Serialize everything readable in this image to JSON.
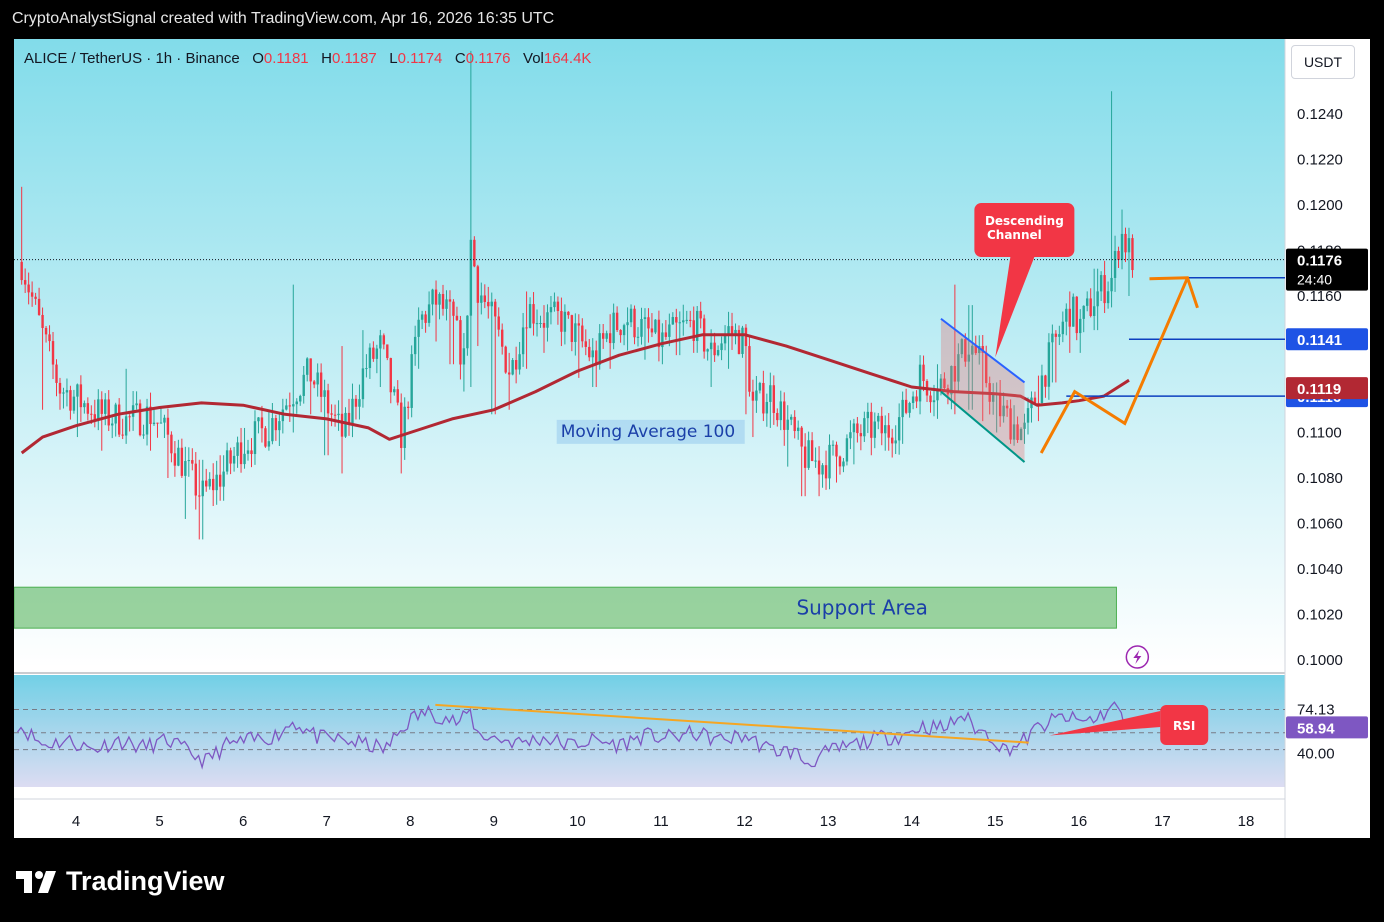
{
  "header": {
    "caption": "CryptoAnalystSignal created with TradingView.com, Apr 16, 2026 16:35 UTC"
  },
  "symbol_bar": {
    "symbol": "ALICE / TetherUS · 1h · Binance",
    "open_label": "O",
    "open": "0.1181",
    "high_label": "H",
    "high": "0.1187",
    "low_label": "L",
    "low": "0.1174",
    "close_label": "C",
    "close": "0.1176",
    "vol_label": "Vol",
    "vol": "164.4K"
  },
  "currency_button": "USDT",
  "brand": {
    "name": "TradingView",
    "icon": "tradingview-logo-icon"
  },
  "colors": {
    "up": "#26a69a",
    "down": "#f23645",
    "ma": "#b22833",
    "support": "#4caf50",
    "level_line": "#0d3fbf",
    "arrow": "#f57c00",
    "rsi_line": "#7e57c2",
    "rsi_trend": "#f5a623",
    "callout": "#f23645"
  },
  "chart_data": [
    {
      "type": "candlestick",
      "title": "ALICE / TetherUS · 1h · Binance",
      "x_ticks": [
        "4",
        "5",
        "6",
        "7",
        "8",
        "9",
        "10",
        "11",
        "12",
        "13",
        "14",
        "15",
        "16",
        "17",
        "18"
      ],
      "ylim": [
        0.0995,
        0.1265
      ],
      "y_ticks": [
        "0.1240",
        "0.1220",
        "0.1200",
        "0.1180",
        "0.1160",
        "0.1140",
        "0.1120",
        "0.1100",
        "0.1080",
        "0.1060",
        "0.1040",
        "0.1020",
        "0.1000"
      ],
      "price_path": {
        "x": [
          3.35,
          3.6,
          3.8,
          4.0,
          4.3,
          4.6,
          4.9,
          5.1,
          5.3,
          5.5,
          5.75,
          6.0,
          6.3,
          6.6,
          6.8,
          7.0,
          7.2,
          7.45,
          7.65,
          7.9,
          8.1,
          8.3,
          8.5,
          8.65,
          8.72,
          8.8,
          9.0,
          9.2,
          9.4,
          9.6,
          9.8,
          10.0,
          10.2,
          10.4,
          10.6,
          10.8,
          11.0,
          11.2,
          11.4,
          11.6,
          11.8,
          12.0,
          12.1,
          12.3,
          12.5,
          12.7,
          12.9,
          13.1,
          13.3,
          13.5,
          13.7,
          13.9,
          14.1,
          14.3,
          14.5,
          14.7,
          14.85,
          15.0,
          15.2,
          15.35,
          15.5,
          15.7,
          15.9,
          16.0,
          16.2,
          16.4,
          16.5,
          16.6,
          16.65
        ],
        "close": [
          0.1175,
          0.1143,
          0.112,
          0.1115,
          0.1108,
          0.1105,
          0.1108,
          0.1098,
          0.1085,
          0.1072,
          0.1082,
          0.1095,
          0.1102,
          0.1118,
          0.1126,
          0.1112,
          0.1098,
          0.1128,
          0.1138,
          0.1098,
          0.1148,
          0.1158,
          0.115,
          0.113,
          0.1185,
          0.1165,
          0.1148,
          0.1126,
          0.1155,
          0.115,
          0.115,
          0.1142,
          0.1132,
          0.1146,
          0.115,
          0.1145,
          0.114,
          0.1145,
          0.1148,
          0.1135,
          0.1145,
          0.114,
          0.1112,
          0.1118,
          0.1105,
          0.109,
          0.1086,
          0.109,
          0.1098,
          0.1102,
          0.11,
          0.1108,
          0.1125,
          0.1118,
          0.1128,
          0.114,
          0.1128,
          0.1112,
          0.1104,
          0.11,
          0.1118,
          0.1138,
          0.1155,
          0.1146,
          0.116,
          0.1168,
          0.1188,
          0.118,
          0.1176
        ],
        "high": [
          0.1208,
          0.115,
          0.1124,
          0.1118,
          0.1115,
          0.1128,
          0.1115,
          0.1102,
          0.109,
          0.1088,
          0.109,
          0.1102,
          0.111,
          0.1165,
          0.113,
          0.1118,
          0.1138,
          0.1145,
          0.1142,
          0.1105,
          0.1155,
          0.1162,
          0.1156,
          0.114,
          0.127,
          0.117,
          0.1155,
          0.1135,
          0.1162,
          0.1156,
          0.1156,
          0.1148,
          0.114,
          0.1152,
          0.1155,
          0.115,
          0.1148,
          0.1152,
          0.1154,
          0.1142,
          0.115,
          0.1146,
          0.112,
          0.1125,
          0.1112,
          0.1098,
          0.1094,
          0.1096,
          0.1106,
          0.1108,
          0.1106,
          0.1118,
          0.113,
          0.113,
          0.1165,
          0.1156,
          0.114,
          0.1122,
          0.1112,
          0.1108,
          0.1125,
          0.1145,
          0.1162,
          0.1152,
          0.1172,
          0.125,
          0.1198,
          0.119,
          0.1182
        ],
        "low": [
          0.1165,
          0.111,
          0.111,
          0.1098,
          0.1092,
          0.1095,
          0.1092,
          0.108,
          0.1062,
          0.1053,
          0.107,
          0.1085,
          0.1092,
          0.11,
          0.1108,
          0.109,
          0.1082,
          0.1112,
          0.112,
          0.1082,
          0.1128,
          0.114,
          0.113,
          0.1118,
          0.112,
          0.1138,
          0.1108,
          0.111,
          0.1128,
          0.1135,
          0.1138,
          0.1124,
          0.112,
          0.1128,
          0.1136,
          0.1132,
          0.113,
          0.1134,
          0.1135,
          0.112,
          0.1128,
          0.1108,
          0.1098,
          0.1102,
          0.1085,
          0.1072,
          0.1072,
          0.1078,
          0.1086,
          0.109,
          0.1092,
          0.1095,
          0.1108,
          0.1106,
          0.1108,
          0.111,
          0.1105,
          0.11,
          0.1095,
          0.1095,
          0.1105,
          0.1122,
          0.1135,
          0.1135,
          0.1145,
          0.1155,
          0.1172,
          0.116,
          0.1168
        ]
      },
      "moving_average": {
        "name": "Moving Average 100",
        "x": [
          3.35,
          3.6,
          4.0,
          4.5,
          5.0,
          5.5,
          6.0,
          6.5,
          7.0,
          7.5,
          7.75,
          8.0,
          8.5,
          9.0,
          9.5,
          10.0,
          10.5,
          11.0,
          11.5,
          12.0,
          12.5,
          13.0,
          13.5,
          14.0,
          14.5,
          15.0,
          15.3,
          15.5,
          15.8,
          16.0,
          16.3,
          16.6
        ],
        "y": [
          0.1091,
          0.1098,
          0.1103,
          0.1108,
          0.1111,
          0.1113,
          0.1112,
          0.1108,
          0.1106,
          0.1102,
          0.1097,
          0.11,
          0.1106,
          0.111,
          0.1118,
          0.1127,
          0.1134,
          0.1139,
          0.1143,
          0.1143,
          0.1138,
          0.1132,
          0.1126,
          0.112,
          0.1118,
          0.1117,
          0.1116,
          0.1112,
          0.1113,
          0.1114,
          0.1116,
          0.1123
        ]
      },
      "current_price_label": "0.1176",
      "countdown": "24:40",
      "horizontal_levels": [
        {
          "price": 0.1168,
          "label": "0.1168",
          "x_from": 16.95
        },
        {
          "price": 0.1141,
          "label": "0.1141",
          "x_from": 16.6
        },
        {
          "price": 0.1116,
          "label": "0.1116",
          "x_from": 15.85
        }
      ],
      "ma_price_label": "0.1119",
      "support_zone": {
        "from": 0.1014,
        "to": 0.1032,
        "x_to": 16.45,
        "label": "Support Area"
      },
      "ma_label": "Moving Average 100",
      "descending_channel": {
        "label": "Descending Channel",
        "upper": [
          [
            14.35,
            0.115
          ],
          [
            15.35,
            0.1122
          ]
        ],
        "lower": [
          [
            14.35,
            0.1118
          ],
          [
            15.35,
            0.1087
          ]
        ]
      },
      "projection_arrow": {
        "x": [
          15.55,
          15.95,
          16.55,
          17.3
        ],
        "y": [
          0.1091,
          0.1118,
          0.1104,
          0.1168
        ]
      },
      "grid": false
    },
    {
      "type": "line",
      "title": "RSI",
      "ylim": [
        10,
        100
      ],
      "levels": [
        "74.13",
        "54.38",
        "40.00"
      ],
      "current_value": "58.94",
      "series": [
        {
          "x": [
            3.3,
            3.6,
            3.9,
            4.2,
            4.5,
            4.8,
            5.1,
            5.4,
            5.55,
            5.8,
            6.1,
            6.4,
            6.6,
            6.9,
            7.2,
            7.5,
            7.7,
            8.0,
            8.2,
            8.4,
            8.6,
            8.7,
            8.8,
            9.0,
            9.3,
            9.6,
            9.9,
            10.2,
            10.5,
            10.8,
            11.1,
            11.4,
            11.7,
            12.0,
            12.3,
            12.6,
            12.75,
            13.0,
            13.3,
            13.6,
            13.9,
            14.1,
            14.4,
            14.6,
            14.8,
            14.95,
            15.1,
            15.3,
            15.5,
            15.8,
            16.0,
            16.2,
            16.4,
            16.45,
            16.55,
            16.65
          ],
          "y": [
            62,
            44,
            48,
            40,
            48,
            42,
            48,
            36,
            30,
            44,
            48,
            52,
            64,
            50,
            48,
            44,
            40,
            66,
            72,
            68,
            62,
            74,
            54,
            50,
            46,
            50,
            44,
            48,
            44,
            52,
            50,
            54,
            48,
            52,
            40,
            38,
            28,
            38,
            44,
            50,
            52,
            60,
            58,
            70,
            56,
            52,
            40,
            45,
            58,
            68,
            64,
            66,
            76,
            78,
            60,
            59
          ]
        }
      ],
      "trendline": [
        [
          8.3,
          78
        ],
        [
          15.4,
          46
        ]
      ]
    }
  ]
}
